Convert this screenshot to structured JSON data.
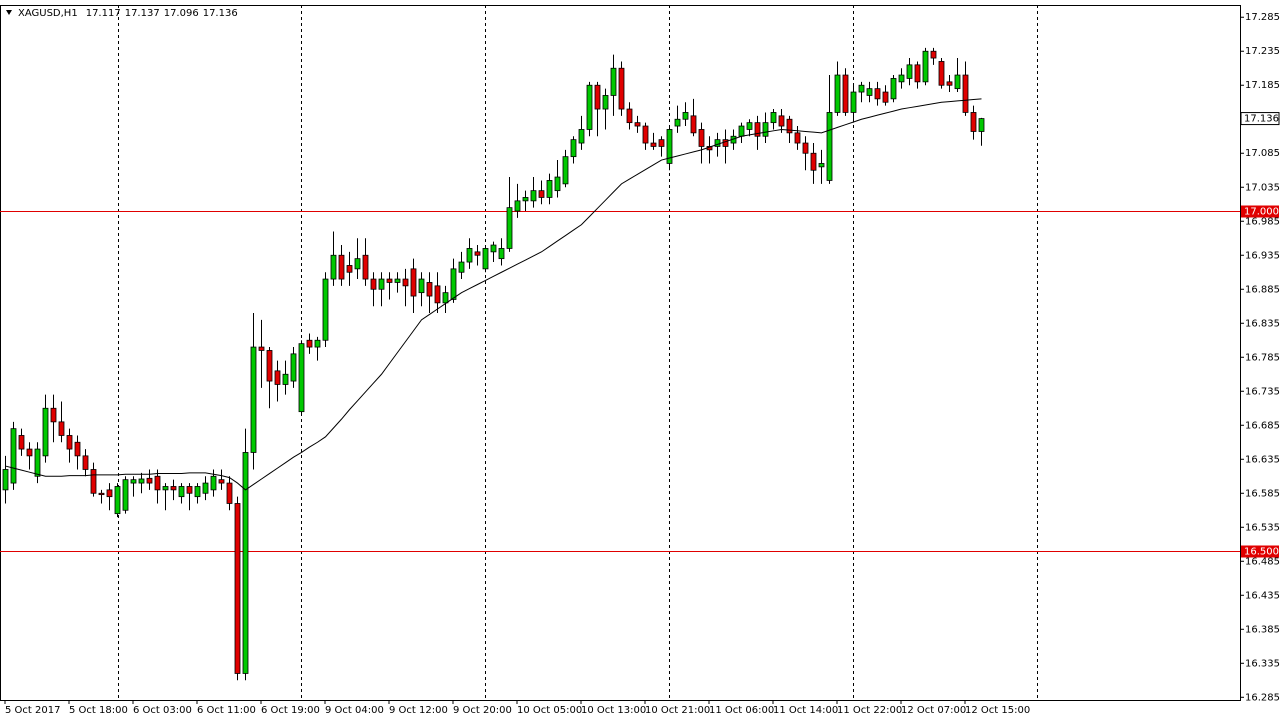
{
  "chart_data": {
    "type": "candlestick",
    "symbol": "XAGUSD,H1",
    "categories": [
      "5 Oct 2017",
      null,
      null,
      null,
      null,
      null,
      null,
      null,
      "5 Oct 18:00",
      null,
      null,
      null,
      null,
      null,
      null,
      null,
      "6 Oct 03:00",
      null,
      null,
      null,
      null,
      null,
      null,
      null,
      "6 Oct 11:00",
      null,
      null,
      null,
      null,
      null,
      null,
      null,
      "6 Oct 19:00",
      null,
      null,
      null,
      null,
      null,
      null,
      null,
      "9 Oct 04:00",
      null,
      null,
      null,
      null,
      null,
      null,
      null,
      "9 Oct 12:00",
      null,
      null,
      null,
      null,
      null,
      null,
      null,
      "9 Oct 20:00",
      null,
      null,
      null,
      null,
      null,
      null,
      null,
      "10 Oct 05:00",
      null,
      null,
      null,
      null,
      null,
      null,
      null,
      "10 Oct 13:00",
      null,
      null,
      null,
      null,
      null,
      null,
      null,
      "10 Oct 21:00",
      null,
      null,
      null,
      null,
      null,
      null,
      null,
      "11 Oct 06:00",
      null,
      null,
      null,
      null,
      null,
      null,
      null,
      "11 Oct 14:00",
      null,
      null,
      null,
      null,
      null,
      null,
      null,
      "11 Oct 22:00",
      null,
      null,
      null,
      null,
      null,
      null,
      null,
      "12 Oct 07:00",
      null,
      null,
      null,
      null,
      null,
      null,
      null,
      "12 Oct 15:00",
      null,
      null
    ],
    "open": [
      16.59,
      16.6,
      16.67,
      16.65,
      16.61,
      16.64,
      16.71,
      16.69,
      16.67,
      16.66,
      16.64,
      16.62,
      16.585,
      16.59,
      16.555,
      16.56,
      16.6,
      16.6,
      16.607,
      16.61,
      16.59,
      16.595,
      16.58,
      16.595,
      16.58,
      16.585,
      16.59,
      16.605,
      16.6,
      16.57,
      16.32,
      16.645,
      16.8,
      16.795,
      16.765,
      16.745,
      16.75,
      16.705,
      16.81,
      16.8,
      16.81,
      16.9,
      16.935,
      16.92,
      16.915,
      16.935,
      16.9,
      16.885,
      16.9,
      16.895,
      16.9,
      16.915,
      16.88,
      16.895,
      16.89,
      16.865,
      16.87,
      16.91,
      16.925,
      16.94,
      16.915,
      16.94,
      16.93,
      16.945,
      17.0,
      17.015,
      17.015,
      17.03,
      17.02,
      17.03,
      17.04,
      17.08,
      17.1,
      17.12,
      17.185,
      17.15,
      17.17,
      17.21,
      17.15,
      17.13,
      17.125,
      17.1,
      17.105,
      17.07,
      17.125,
      17.135,
      17.14,
      17.12,
      17.095,
      17.095,
      17.105,
      17.1,
      17.11,
      17.12,
      17.13,
      17.11,
      17.13,
      17.14,
      17.135,
      17.115,
      17.1,
      17.085,
      17.065,
      17.045,
      17.145,
      17.2,
      17.145,
      17.175,
      17.17,
      17.18,
      17.175,
      17.165,
      17.19,
      17.195,
      17.215,
      17.19,
      17.235,
      17.22,
      17.19,
      17.18,
      17.2,
      17.145,
      17.117
    ],
    "high": [
      16.64,
      16.69,
      16.68,
      16.66,
      16.66,
      16.73,
      16.73,
      16.72,
      16.68,
      16.67,
      16.65,
      16.63,
      16.59,
      16.6,
      16.6,
      16.61,
      16.61,
      16.615,
      16.62,
      16.62,
      16.6,
      16.605,
      16.6,
      16.6,
      16.6,
      16.61,
      16.62,
      16.62,
      16.61,
      16.58,
      16.68,
      16.85,
      16.84,
      16.8,
      16.78,
      16.78,
      16.8,
      16.81,
      16.82,
      16.815,
      16.91,
      16.97,
      16.95,
      16.94,
      16.96,
      16.96,
      16.91,
      16.91,
      16.91,
      16.91,
      16.915,
      16.93,
      16.91,
      16.91,
      16.91,
      16.89,
      16.93,
      16.94,
      16.96,
      16.95,
      16.95,
      16.955,
      16.96,
      17.05,
      17.04,
      17.03,
      17.05,
      17.045,
      17.055,
      17.075,
      17.09,
      17.11,
      17.14,
      17.19,
      17.19,
      17.18,
      17.23,
      17.22,
      17.16,
      17.14,
      17.13,
      17.115,
      17.11,
      17.125,
      17.155,
      17.16,
      17.165,
      17.13,
      17.11,
      17.115,
      17.12,
      17.12,
      17.13,
      17.135,
      17.14,
      17.145,
      17.15,
      17.15,
      17.14,
      17.125,
      17.11,
      17.1,
      17.09,
      17.2,
      17.22,
      17.21,
      17.185,
      17.19,
      17.19,
      17.19,
      17.185,
      17.2,
      17.21,
      17.225,
      17.22,
      17.24,
      17.24,
      17.225,
      17.2,
      17.225,
      17.22,
      17.155,
      17.137
    ],
    "low": [
      16.57,
      16.59,
      16.64,
      16.62,
      16.6,
      16.63,
      16.66,
      16.66,
      16.63,
      16.62,
      16.61,
      16.58,
      16.57,
      16.56,
      16.55,
      16.555,
      16.58,
      16.585,
      16.59,
      16.57,
      16.56,
      16.575,
      16.57,
      16.56,
      16.57,
      16.575,
      16.58,
      16.59,
      16.56,
      16.31,
      16.31,
      16.62,
      16.74,
      16.71,
      16.72,
      16.73,
      16.74,
      16.7,
      16.79,
      16.78,
      16.8,
      16.89,
      16.89,
      16.89,
      16.9,
      16.89,
      16.86,
      16.86,
      16.87,
      16.88,
      16.86,
      16.85,
      16.86,
      16.85,
      16.85,
      16.85,
      16.865,
      16.9,
      16.915,
      16.92,
      16.91,
      16.925,
      16.92,
      16.94,
      16.99,
      17.0,
      17.005,
      17.01,
      17.01,
      17.02,
      17.035,
      17.07,
      17.09,
      17.11,
      17.11,
      17.12,
      17.14,
      17.14,
      17.12,
      17.115,
      17.09,
      17.09,
      17.08,
      17.06,
      17.115,
      17.125,
      17.11,
      17.07,
      17.07,
      17.08,
      17.07,
      17.09,
      17.1,
      17.11,
      17.09,
      17.1,
      17.12,
      17.115,
      17.1,
      17.09,
      17.06,
      17.04,
      17.04,
      17.04,
      17.14,
      17.14,
      17.13,
      17.16,
      17.16,
      17.155,
      17.155,
      17.16,
      17.18,
      17.185,
      17.18,
      17.185,
      17.215,
      17.18,
      17.175,
      17.175,
      17.14,
      17.105,
      17.096
    ],
    "close": [
      16.62,
      16.68,
      16.65,
      16.64,
      16.65,
      16.71,
      16.69,
      16.67,
      16.65,
      16.64,
      16.62,
      16.585,
      16.583,
      16.58,
      16.595,
      16.605,
      16.605,
      16.606,
      16.6,
      16.59,
      16.595,
      16.59,
      16.595,
      16.585,
      16.595,
      16.6,
      16.61,
      16.6,
      16.57,
      16.32,
      16.645,
      16.8,
      16.795,
      16.75,
      16.745,
      16.76,
      16.79,
      16.805,
      16.8,
      16.81,
      16.9,
      16.935,
      16.9,
      16.91,
      16.93,
      16.9,
      16.885,
      16.9,
      16.895,
      16.9,
      16.89,
      16.875,
      16.9,
      16.875,
      16.865,
      16.88,
      16.915,
      16.925,
      16.945,
      16.935,
      16.945,
      16.95,
      16.945,
      17.005,
      17.015,
      17.02,
      17.03,
      17.02,
      17.045,
      17.05,
      17.08,
      17.105,
      17.12,
      17.185,
      17.15,
      17.17,
      17.21,
      17.15,
      17.13,
      17.125,
      17.1,
      17.095,
      17.095,
      17.12,
      17.135,
      17.145,
      17.115,
      17.095,
      17.09,
      17.105,
      17.095,
      17.11,
      17.125,
      17.13,
      17.11,
      17.13,
      17.145,
      17.125,
      17.115,
      17.1,
      17.085,
      17.06,
      17.07,
      17.145,
      17.2,
      17.145,
      17.175,
      17.185,
      17.18,
      17.165,
      17.16,
      17.195,
      17.2,
      17.215,
      17.19,
      17.235,
      17.225,
      17.185,
      17.185,
      17.2,
      17.145,
      17.117,
      17.136
    ],
    "ma": [
      16.625,
      16.622,
      16.619,
      16.616,
      16.613,
      16.61,
      16.61,
      16.61,
      16.611,
      16.611,
      16.611,
      16.612,
      16.612,
      16.612,
      16.612,
      16.613,
      16.613,
      16.613,
      16.613,
      16.614,
      16.614,
      16.614,
      16.614,
      16.615,
      16.615,
      16.615,
      16.613,
      16.611,
      16.608,
      16.6,
      16.59,
      16.598,
      16.606,
      16.614,
      16.622,
      16.63,
      16.638,
      16.645,
      16.653,
      16.66,
      16.668,
      16.681,
      16.694,
      16.708,
      16.721,
      16.734,
      16.747,
      16.76,
      16.776,
      16.792,
      16.808,
      16.824,
      16.84,
      16.848,
      16.856,
      16.864,
      16.872,
      16.88,
      16.886,
      16.892,
      16.898,
      16.904,
      16.91,
      16.916,
      16.922,
      16.928,
      16.934,
      16.94,
      16.948,
      16.956,
      16.964,
      16.972,
      16.98,
      16.992,
      17.004,
      17.016,
      17.028,
      17.04,
      17.047,
      17.054,
      17.061,
      17.068,
      17.075,
      17.078,
      17.081,
      17.084,
      17.087,
      17.09,
      17.094,
      17.098,
      17.102,
      17.106,
      17.11,
      17.112,
      17.114,
      17.116,
      17.118,
      17.12,
      17.119,
      17.118,
      17.117,
      17.116,
      17.115,
      17.119,
      17.123,
      17.127,
      17.131,
      17.135,
      17.138,
      17.141,
      17.144,
      17.147,
      17.15,
      17.152,
      17.154,
      17.156,
      17.158,
      17.16,
      17.161,
      17.162,
      17.163,
      17.164,
      17.165
    ],
    "up_color": "#00c800",
    "down_color": "#e00000",
    "ma_color": "#000000",
    "hlines": [
      {
        "value": 17.0,
        "label": "17.000",
        "color": "#e00000"
      },
      {
        "value": 16.5,
        "label": "16.500",
        "color": "#e00000"
      }
    ],
    "ylim": [
      16.281,
      17.303
    ],
    "yticks": [
      16.285,
      16.335,
      16.385,
      16.435,
      16.485,
      16.535,
      16.585,
      16.635,
      16.685,
      16.735,
      16.785,
      16.835,
      16.885,
      16.935,
      16.985,
      17.035,
      17.085,
      17.185,
      17.235,
      17.285
    ]
  }
}
